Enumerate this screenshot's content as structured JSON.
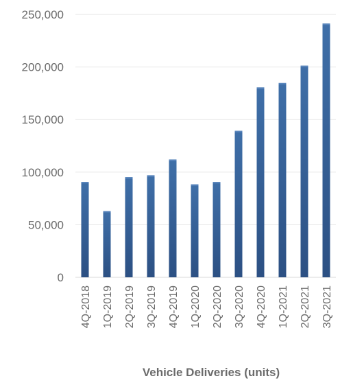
{
  "chart_data": {
    "type": "bar",
    "title": "Vehicle Deliveries (units)",
    "xlabel": "",
    "ylabel": "",
    "ylim": [
      0,
      250000
    ],
    "yticks": [
      0,
      50000,
      100000,
      150000,
      200000,
      250000
    ],
    "ytick_labels": [
      "0",
      "50,000",
      "100,000",
      "150,000",
      "200,000",
      "250,000"
    ],
    "categories": [
      "4Q-2018",
      "1Q-2019",
      "2Q-2019",
      "3Q-2019",
      "4Q-2019",
      "1Q-2020",
      "2Q-2020",
      "3Q-2020",
      "4Q-2020",
      "1Q-2021",
      "2Q-2021",
      "3Q-2021"
    ],
    "values": [
      90700,
      63000,
      95200,
      97000,
      112000,
      88400,
      90650,
      139300,
      180570,
      184800,
      201250,
      241300
    ],
    "grid": true,
    "legend": "none",
    "bar_color_top": "#3f6fa8",
    "bar_color_bottom": "#2c5083"
  }
}
